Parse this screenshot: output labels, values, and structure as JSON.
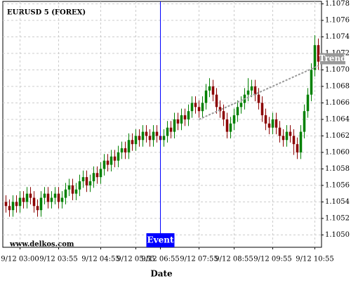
{
  "chart_data": {
    "type": "candlestick",
    "title": "EURUSD 5 (FOREX)",
    "watermark": "www.delkos.com",
    "x_label": "Date",
    "up_color": "#008000",
    "down_color": "#8b0000",
    "grid": true,
    "xlim": [
      -0.5,
      89.5
    ],
    "ylim": [
      1.10485,
      1.10783
    ],
    "xticks": [
      {
        "value": 4,
        "label": "9/12 03:00"
      },
      {
        "value": 15,
        "label": "9/12 03:55"
      },
      {
        "value": 27,
        "label": "9/12 04:55"
      },
      {
        "value": 37,
        "label": "9/12 05:55"
      },
      {
        "value": 44,
        "label": "9/12 06:55"
      },
      {
        "value": 55,
        "label": "9/12 07:55"
      },
      {
        "value": 65,
        "label": "9/12 08:55"
      },
      {
        "value": 76,
        "label": "9/12 09:55"
      },
      {
        "value": 88,
        "label": "9/12 10:55"
      }
    ],
    "yticks": [
      {
        "value": 1.105,
        "label": "1.1050"
      },
      {
        "value": 1.1052,
        "label": "1.1052"
      },
      {
        "value": 1.1054,
        "label": "1.1054"
      },
      {
        "value": 1.1056,
        "label": "1.1056"
      },
      {
        "value": 1.1058,
        "label": "1.1058"
      },
      {
        "value": 1.106,
        "label": "1.1060"
      },
      {
        "value": 1.1062,
        "label": "1.1062"
      },
      {
        "value": 1.1064,
        "label": "1.1064"
      },
      {
        "value": 1.1066,
        "label": "1.1066"
      },
      {
        "value": 1.1068,
        "label": "1.1068"
      },
      {
        "value": 1.107,
        "label": "1.1070"
      },
      {
        "value": 1.1072,
        "label": "1.1072"
      },
      {
        "value": 1.1074,
        "label": "1.1074"
      },
      {
        "value": 1.1076,
        "label": "1.1076"
      },
      {
        "value": 1.1078,
        "label": "1.1078"
      }
    ],
    "ohlc": [
      [
        1.1054,
        1.10548,
        1.10527,
        1.10535
      ],
      [
        1.10535,
        1.10543,
        1.10522,
        1.1053
      ],
      [
        1.1053,
        1.10548,
        1.10522,
        1.1054
      ],
      [
        1.1054,
        1.10548,
        1.10527,
        1.10535
      ],
      [
        1.10535,
        1.10553,
        1.10527,
        1.10545
      ],
      [
        1.10545,
        1.10553,
        1.10532,
        1.1054
      ],
      [
        1.1054,
        1.10558,
        1.10532,
        1.1055
      ],
      [
        1.1055,
        1.10558,
        1.10537,
        1.10545
      ],
      [
        1.10545,
        1.10553,
        1.10527,
        1.10535
      ],
      [
        1.10535,
        1.10543,
        1.10522,
        1.1053
      ],
      [
        1.1053,
        1.10553,
        1.10522,
        1.10545
      ],
      [
        1.10545,
        1.10558,
        1.10537,
        1.1055
      ],
      [
        1.1055,
        1.10558,
        1.10532,
        1.1054
      ],
      [
        1.1054,
        1.10553,
        1.10532,
        1.10545
      ],
      [
        1.10545,
        1.10558,
        1.10537,
        1.1055
      ],
      [
        1.1055,
        1.10558,
        1.10532,
        1.1054
      ],
      [
        1.1054,
        1.10553,
        1.10532,
        1.10545
      ],
      [
        1.10545,
        1.10563,
        1.10537,
        1.10555
      ],
      [
        1.10555,
        1.10568,
        1.10547,
        1.1056
      ],
      [
        1.1056,
        1.10568,
        1.10542,
        1.1055
      ],
      [
        1.1055,
        1.10563,
        1.10542,
        1.10555
      ],
      [
        1.10555,
        1.10573,
        1.10547,
        1.10565
      ],
      [
        1.10565,
        1.10578,
        1.10557,
        1.1057
      ],
      [
        1.1057,
        1.10578,
        1.10552,
        1.1056
      ],
      [
        1.1056,
        1.10573,
        1.10552,
        1.10565
      ],
      [
        1.10565,
        1.10583,
        1.10557,
        1.10575
      ],
      [
        1.10575,
        1.10583,
        1.10562,
        1.1057
      ],
      [
        1.1057,
        1.10588,
        1.10562,
        1.1058
      ],
      [
        1.1058,
        1.10598,
        1.10572,
        1.1059
      ],
      [
        1.1059,
        1.10598,
        1.10577,
        1.10585
      ],
      [
        1.10585,
        1.10603,
        1.10577,
        1.10595
      ],
      [
        1.10595,
        1.10603,
        1.10582,
        1.1059
      ],
      [
        1.1059,
        1.10608,
        1.10582,
        1.106
      ],
      [
        1.106,
        1.10613,
        1.10592,
        1.10605
      ],
      [
        1.10605,
        1.10613,
        1.10592,
        1.106
      ],
      [
        1.106,
        1.10623,
        1.10592,
        1.10615
      ],
      [
        1.10615,
        1.10623,
        1.10602,
        1.1061
      ],
      [
        1.1061,
        1.10628,
        1.10602,
        1.1062
      ],
      [
        1.1062,
        1.10628,
        1.10607,
        1.10615
      ],
      [
        1.10615,
        1.10633,
        1.10607,
        1.10625
      ],
      [
        1.10625,
        1.10633,
        1.10612,
        1.1062
      ],
      [
        1.1062,
        1.10628,
        1.10607,
        1.10615
      ],
      [
        1.10615,
        1.10633,
        1.10607,
        1.10625
      ],
      [
        1.10625,
        1.10633,
        1.10612,
        1.1062
      ],
      [
        1.1062,
        1.10628,
        1.10607,
        1.10615
      ],
      [
        1.10615,
        1.10628,
        1.10607,
        1.1062
      ],
      [
        1.1062,
        1.10638,
        1.10612,
        1.1063
      ],
      [
        1.1063,
        1.10638,
        1.10617,
        1.10625
      ],
      [
        1.10625,
        1.10648,
        1.10617,
        1.1064
      ],
      [
        1.1064,
        1.10648,
        1.10627,
        1.10635
      ],
      [
        1.10635,
        1.10653,
        1.10627,
        1.10645
      ],
      [
        1.10645,
        1.10653,
        1.10632,
        1.1064
      ],
      [
        1.1064,
        1.10658,
        1.10632,
        1.1065
      ],
      [
        1.1065,
        1.10668,
        1.10642,
        1.1066
      ],
      [
        1.1066,
        1.10668,
        1.10647,
        1.10655
      ],
      [
        1.10655,
        1.10663,
        1.10642,
        1.1065
      ],
      [
        1.1065,
        1.10668,
        1.10642,
        1.1066
      ],
      [
        1.1066,
        1.10683,
        1.10652,
        1.10675
      ],
      [
        1.10675,
        1.1069,
        1.10667,
        1.1068
      ],
      [
        1.1068,
        1.10688,
        1.10662,
        1.1067
      ],
      [
        1.1067,
        1.10678,
        1.10647,
        1.10655
      ],
      [
        1.10655,
        1.10663,
        1.10642,
        1.1065
      ],
      [
        1.1065,
        1.10658,
        1.10632,
        1.1064
      ],
      [
        1.1064,
        1.10648,
        1.10617,
        1.10625
      ],
      [
        1.10625,
        1.10643,
        1.10617,
        1.10635
      ],
      [
        1.10635,
        1.10653,
        1.10627,
        1.10645
      ],
      [
        1.10645,
        1.10663,
        1.10637,
        1.10655
      ],
      [
        1.10655,
        1.10668,
        1.10647,
        1.1066
      ],
      [
        1.1066,
        1.10678,
        1.10652,
        1.1067
      ],
      [
        1.1067,
        1.1069,
        1.10662,
        1.10675
      ],
      [
        1.10675,
        1.10688,
        1.10667,
        1.1068
      ],
      [
        1.1068,
        1.10688,
        1.10662,
        1.1067
      ],
      [
        1.1067,
        1.10678,
        1.10652,
        1.1066
      ],
      [
        1.1066,
        1.10668,
        1.10637,
        1.10645
      ],
      [
        1.10645,
        1.10653,
        1.10627,
        1.10635
      ],
      [
        1.10635,
        1.10643,
        1.10622,
        1.1063
      ],
      [
        1.1063,
        1.10648,
        1.10622,
        1.1064
      ],
      [
        1.1064,
        1.10648,
        1.10622,
        1.1063
      ],
      [
        1.1063,
        1.10638,
        1.10612,
        1.1062
      ],
      [
        1.1062,
        1.10628,
        1.10607,
        1.10615
      ],
      [
        1.10615,
        1.10633,
        1.10607,
        1.10625
      ],
      [
        1.10625,
        1.10633,
        1.10612,
        1.1062
      ],
      [
        1.1062,
        1.10628,
        1.10597,
        1.1061
      ],
      [
        1.1061,
        1.10618,
        1.10592,
        1.106
      ],
      [
        1.106,
        1.10633,
        1.10592,
        1.10625
      ],
      [
        1.10625,
        1.10658,
        1.10617,
        1.1065
      ],
      [
        1.1065,
        1.10678,
        1.10642,
        1.1067
      ],
      [
        1.1067,
        1.10708,
        1.10662,
        1.107
      ],
      [
        1.107,
        1.10742,
        1.10692,
        1.1073
      ],
      [
        1.1073,
        1.10738,
        1.107,
        1.1071
      ]
    ],
    "trend": {
      "label": "Trend",
      "color": "#999999",
      "start": [
        55,
        1.1064
      ],
      "end": [
        89,
        1.10705
      ]
    },
    "event": {
      "label": "Event",
      "index": 44,
      "color": "#0000ff"
    }
  }
}
